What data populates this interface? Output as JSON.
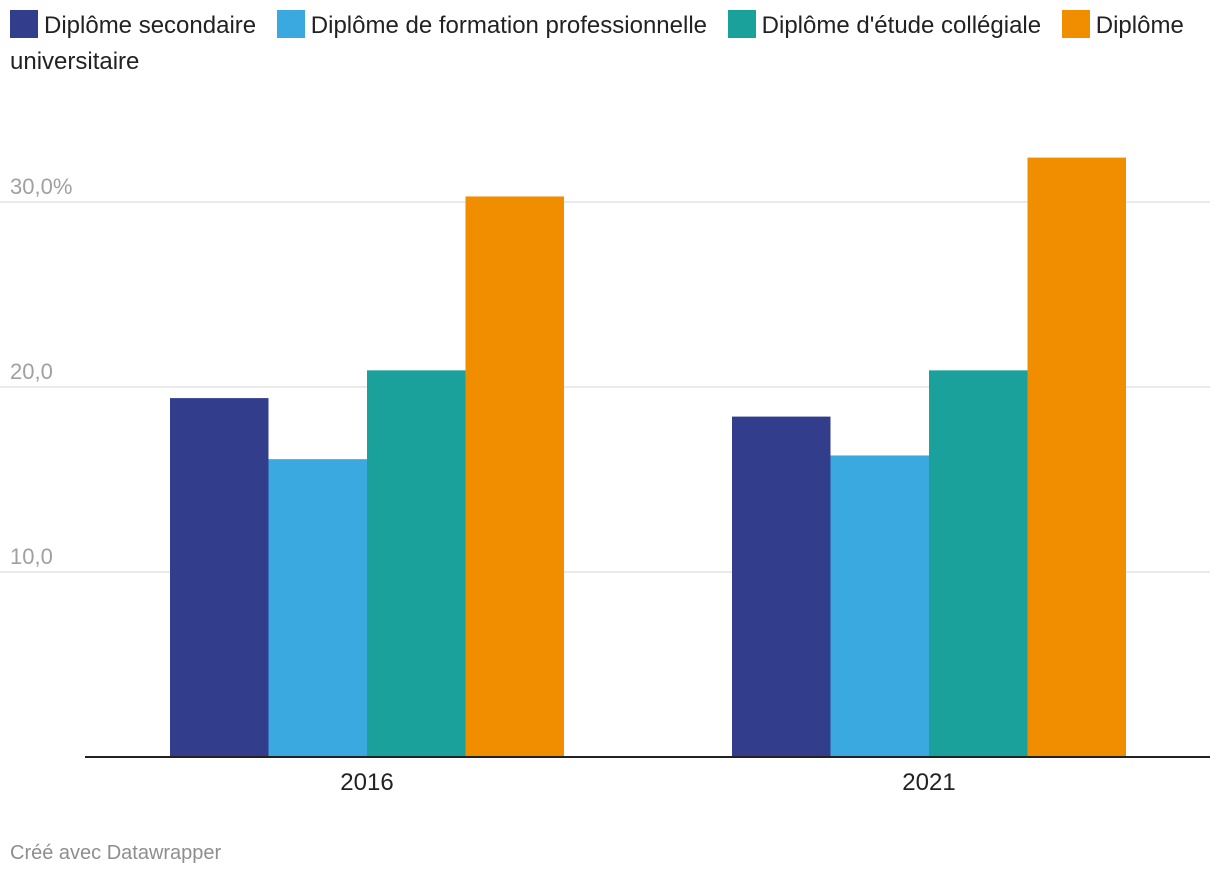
{
  "chart_data": {
    "type": "bar",
    "categories": [
      "2016",
      "2021"
    ],
    "series": [
      {
        "name": "Diplôme secondaire",
        "color": "#323e8c",
        "values": [
          19.4,
          18.4
        ]
      },
      {
        "name": "Diplôme de formation professionnelle",
        "color": "#3aa9e0",
        "values": [
          16.1,
          16.3
        ]
      },
      {
        "name": "Diplôme d'étude collégiale",
        "color": "#1ba19b",
        "values": [
          20.9,
          20.9
        ]
      },
      {
        "name": "Diplôme universitaire",
        "color": "#f08e00",
        "values": [
          30.3,
          32.4
        ]
      }
    ],
    "yticks": [
      {
        "value": 10,
        "label": "10,0"
      },
      {
        "value": 20,
        "label": "20,0"
      },
      {
        "value": 30,
        "label": "30,0%"
      }
    ],
    "ylim": [
      0,
      34
    ],
    "grid": true,
    "legend_position": "top"
  },
  "footer": "Créé avec Datawrapper"
}
